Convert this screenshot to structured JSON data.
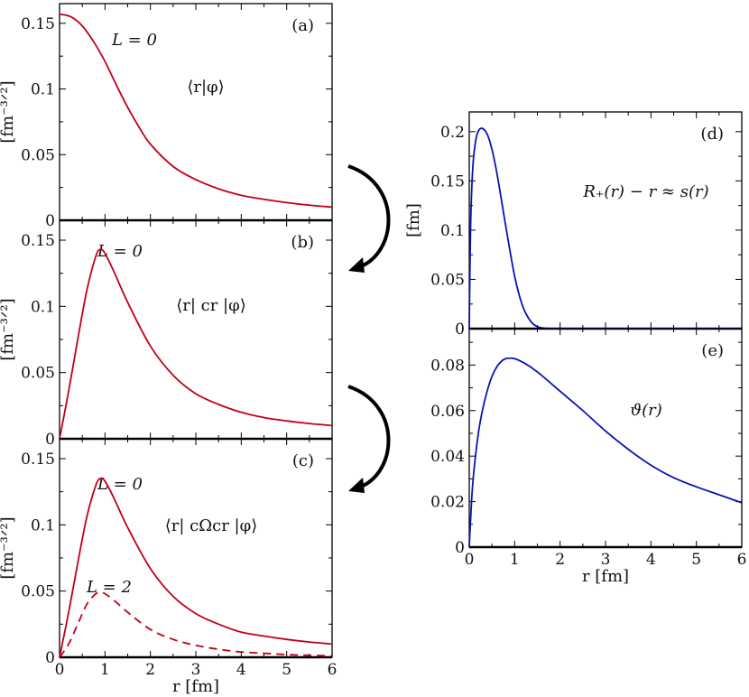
{
  "colors": {
    "red": "#c0001a",
    "blue": "#0a14b4",
    "axis": "#000000"
  },
  "chart_data": [
    {
      "id": "a",
      "type": "line",
      "panel_label": "(a)",
      "annotations": [
        "L = 0",
        "⟨r|φ⟩"
      ],
      "ylabel": "[fm⁻³ᐟ²]",
      "xlabel": "",
      "xlim": [
        0,
        6
      ],
      "ylim": [
        0,
        0.165
      ],
      "xticks": [
        0,
        1,
        2,
        3,
        4,
        5,
        6
      ],
      "yticks": [
        0,
        0.05,
        0.1,
        0.15
      ],
      "ytick_labels": [
        "0",
        "0.05",
        "0.1",
        "0.15"
      ],
      "xtick_labels": [],
      "series": [
        {
          "style": "solid",
          "color": "red",
          "x": [
            0,
            0.25,
            0.5,
            0.75,
            1,
            1.25,
            1.5,
            1.75,
            2,
            2.5,
            3,
            3.5,
            4,
            4.5,
            5,
            5.5,
            6
          ],
          "y": [
            0.157,
            0.155,
            0.148,
            0.136,
            0.121,
            0.103,
            0.086,
            0.071,
            0.058,
            0.041,
            0.031,
            0.024,
            0.019,
            0.016,
            0.0135,
            0.0115,
            0.01
          ]
        }
      ]
    },
    {
      "id": "b",
      "type": "line",
      "panel_label": "(b)",
      "annotations": [
        "L = 0",
        "⟨r| cr |φ⟩"
      ],
      "ylabel": "[fm⁻³ᐟ²]",
      "xlabel": "",
      "xlim": [
        0,
        6
      ],
      "ylim": [
        0,
        0.165
      ],
      "xticks": [
        0,
        1,
        2,
        3,
        4,
        5,
        6
      ],
      "yticks": [
        0,
        0.05,
        0.1,
        0.15
      ],
      "ytick_labels": [
        "0",
        "0.05",
        "0.1",
        "0.15"
      ],
      "xtick_labels": [],
      "series": [
        {
          "style": "solid",
          "color": "red",
          "x": [
            0,
            0.2,
            0.4,
            0.6,
            0.8,
            0.9,
            1,
            1.2,
            1.5,
            2,
            2.5,
            3,
            3.5,
            4,
            4.5,
            5,
            5.5,
            6
          ],
          "y": [
            0,
            0.036,
            0.075,
            0.112,
            0.138,
            0.143,
            0.14,
            0.126,
            0.103,
            0.07,
            0.048,
            0.034,
            0.026,
            0.02,
            0.016,
            0.0135,
            0.0115,
            0.01
          ]
        }
      ]
    },
    {
      "id": "c",
      "type": "line",
      "panel_label": "(c)",
      "annotations": [
        "L = 0",
        "L = 2",
        "⟨r| cΩcr |φ⟩"
      ],
      "ylabel": "[fm⁻³ᐟ²]",
      "xlabel": "r [fm]",
      "xlim": [
        0,
        6
      ],
      "ylim": [
        0,
        0.165
      ],
      "xticks": [
        0,
        1,
        2,
        3,
        4,
        5,
        6
      ],
      "yticks": [
        0,
        0.05,
        0.1,
        0.15
      ],
      "ytick_labels": [
        "0",
        "0.05",
        "0.1",
        "0.15"
      ],
      "xtick_labels": [
        "0",
        "1",
        "2",
        "3",
        "4",
        "5",
        "6"
      ],
      "series": [
        {
          "style": "solid",
          "color": "red",
          "x": [
            0,
            0.2,
            0.4,
            0.6,
            0.8,
            0.9,
            1,
            1.2,
            1.5,
            2,
            2.5,
            3,
            3.5,
            4,
            4.5,
            5,
            5.5,
            6
          ],
          "y": [
            0,
            0.034,
            0.071,
            0.106,
            0.13,
            0.135,
            0.133,
            0.12,
            0.098,
            0.067,
            0.046,
            0.033,
            0.025,
            0.019,
            0.016,
            0.0135,
            0.0115,
            0.01
          ]
        },
        {
          "style": "dashed",
          "color": "red",
          "x": [
            0,
            0.2,
            0.4,
            0.6,
            0.8,
            0.9,
            1,
            1.2,
            1.5,
            2,
            2.5,
            3,
            3.5,
            4,
            4.5,
            5,
            5.5,
            6
          ],
          "y": [
            0,
            0.01,
            0.025,
            0.04,
            0.048,
            0.049,
            0.048,
            0.043,
            0.034,
            0.021,
            0.0135,
            0.009,
            0.006,
            0.004,
            0.003,
            0.002,
            0.0015,
            0.001
          ]
        }
      ]
    },
    {
      "id": "d",
      "type": "line",
      "panel_label": "(d)",
      "annotations": [
        "R₊(r) − r ≈ s(r)"
      ],
      "ylabel": "[fm]",
      "xlabel": "",
      "xlim": [
        0,
        6
      ],
      "ylim": [
        0,
        0.22
      ],
      "xticks": [
        0,
        1,
        2,
        3,
        4,
        5,
        6
      ],
      "yticks": [
        0,
        0.05,
        0.1,
        0.15,
        0.2
      ],
      "ytick_labels": [
        "0",
        "0.05",
        "0.1",
        "0.15",
        "0.2"
      ],
      "xtick_labels": [],
      "series": [
        {
          "style": "solid",
          "color": "blue",
          "x": [
            0,
            0.03,
            0.08,
            0.15,
            0.22,
            0.3,
            0.4,
            0.5,
            0.6,
            0.7,
            0.8,
            0.9,
            1,
            1.1,
            1.2,
            1.3,
            1.4,
            1.5,
            1.6,
            1.7,
            1.8,
            2,
            6
          ],
          "y": [
            0,
            0.105,
            0.165,
            0.193,
            0.202,
            0.203,
            0.197,
            0.182,
            0.16,
            0.133,
            0.105,
            0.078,
            0.053,
            0.034,
            0.02,
            0.011,
            0.005,
            0.002,
            0.0008,
            0.0003,
            0,
            0,
            0
          ]
        }
      ]
    },
    {
      "id": "e",
      "type": "line",
      "panel_label": "(e)",
      "annotations": [
        "ϑ(r)"
      ],
      "ylabel": "",
      "xlabel": "r [fm]",
      "xlim": [
        0,
        6
      ],
      "ylim": [
        0,
        0.096
      ],
      "xticks": [
        0,
        1,
        2,
        3,
        4,
        5,
        6
      ],
      "yticks": [
        0,
        0.02,
        0.04,
        0.06,
        0.08
      ],
      "ytick_labels": [
        "0",
        "0.02",
        "0.04",
        "0.06",
        "0.08"
      ],
      "xtick_labels": [
        "0",
        "1",
        "2",
        "3",
        "4",
        "5",
        "6"
      ],
      "series": [
        {
          "style": "solid",
          "color": "blue",
          "x": [
            0,
            0.05,
            0.1,
            0.2,
            0.3,
            0.4,
            0.5,
            0.6,
            0.7,
            0.8,
            0.9,
            1,
            1.2,
            1.5,
            2,
            2.5,
            3,
            3.5,
            4,
            4.5,
            5,
            5.5,
            6
          ],
          "y": [
            0,
            0.02,
            0.033,
            0.05,
            0.061,
            0.069,
            0.075,
            0.079,
            0.0815,
            0.0828,
            0.083,
            0.0828,
            0.081,
            0.077,
            0.0685,
            0.06,
            0.051,
            0.043,
            0.036,
            0.0305,
            0.0265,
            0.023,
            0.0195
          ]
        }
      ]
    }
  ]
}
